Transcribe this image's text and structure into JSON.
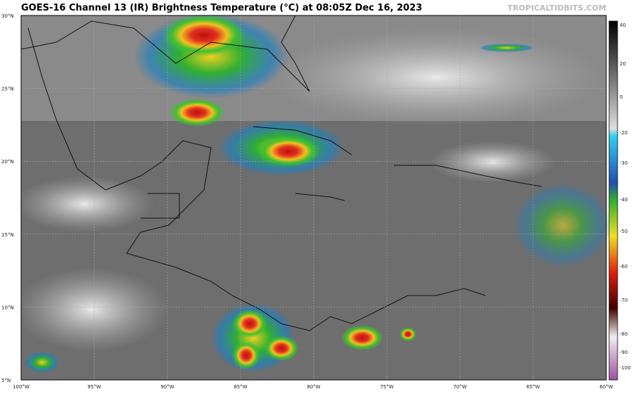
{
  "header": {
    "title": "GOES-16 Channel 13 (IR) Brightness Temperature (°C) at 08:05Z Dec 16, 2023",
    "watermark": "TROPICALTIDBITS.COM"
  },
  "map": {
    "lat_labels": [
      "30°N",
      "25°N",
      "20°N",
      "15°N",
      "10°N",
      "5°N"
    ],
    "lon_labels": [
      "100°W",
      "95°W",
      "90°W",
      "85°W",
      "80°W",
      "75°W",
      "70°W",
      "65°W",
      "60°W"
    ]
  },
  "colorbar": {
    "labels": [
      40,
      20,
      0,
      -20,
      -30,
      -40,
      -50,
      -60,
      -70,
      -80,
      -90,
      -100
    ]
  }
}
